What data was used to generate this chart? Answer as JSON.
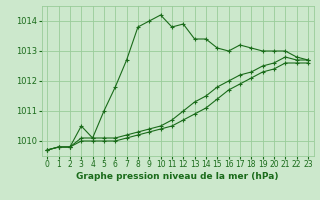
{
  "title": "Graphe pression niveau de la mer (hPa)",
  "background_color": "#cce8cc",
  "grid_color": "#99cc99",
  "line_color": "#1a6b1a",
  "xlim": [
    -0.5,
    23.5
  ],
  "ylim": [
    1009.5,
    1014.5
  ],
  "yticks": [
    1010,
    1011,
    1012,
    1013,
    1014
  ],
  "xticks": [
    0,
    1,
    2,
    3,
    4,
    5,
    6,
    7,
    8,
    9,
    10,
    11,
    12,
    13,
    14,
    15,
    16,
    17,
    18,
    19,
    20,
    21,
    22,
    23
  ],
  "series1_x": [
    0,
    1,
    2,
    3,
    4,
    5,
    6,
    7,
    8,
    9,
    10,
    11,
    12,
    13,
    14,
    15,
    16,
    17,
    18,
    19,
    20,
    21,
    22,
    23
  ],
  "series1_y": [
    1009.7,
    1009.8,
    1009.8,
    1010.5,
    1010.1,
    1011.0,
    1011.8,
    1012.7,
    1013.8,
    1014.0,
    1014.2,
    1013.8,
    1013.9,
    1013.4,
    1013.4,
    1013.1,
    1013.0,
    1013.2,
    1013.1,
    1013.0,
    1013.0,
    1013.0,
    1012.8,
    1012.7
  ],
  "series2_x": [
    0,
    1,
    2,
    3,
    4,
    5,
    6,
    7,
    8,
    9,
    10,
    11,
    12,
    13,
    14,
    15,
    16,
    17,
    18,
    19,
    20,
    21,
    22,
    23
  ],
  "series2_y": [
    1009.7,
    1009.8,
    1009.8,
    1010.1,
    1010.1,
    1010.1,
    1010.1,
    1010.2,
    1010.3,
    1010.4,
    1010.5,
    1010.7,
    1011.0,
    1011.3,
    1011.5,
    1011.8,
    1012.0,
    1012.2,
    1012.3,
    1012.5,
    1012.6,
    1012.8,
    1012.7,
    1012.7
  ],
  "series3_x": [
    0,
    1,
    2,
    3,
    4,
    5,
    6,
    7,
    8,
    9,
    10,
    11,
    12,
    13,
    14,
    15,
    16,
    17,
    18,
    19,
    20,
    21,
    22,
    23
  ],
  "series3_y": [
    1009.7,
    1009.8,
    1009.8,
    1010.0,
    1010.0,
    1010.0,
    1010.0,
    1010.1,
    1010.2,
    1010.3,
    1010.4,
    1010.5,
    1010.7,
    1010.9,
    1011.1,
    1011.4,
    1011.7,
    1011.9,
    1012.1,
    1012.3,
    1012.4,
    1012.6,
    1012.6,
    1012.6
  ],
  "title_fontsize": 6.5,
  "tick_fontsize": 5.5,
  "ytick_fontsize": 6.0,
  "linewidth": 0.8,
  "markersize": 3.5
}
